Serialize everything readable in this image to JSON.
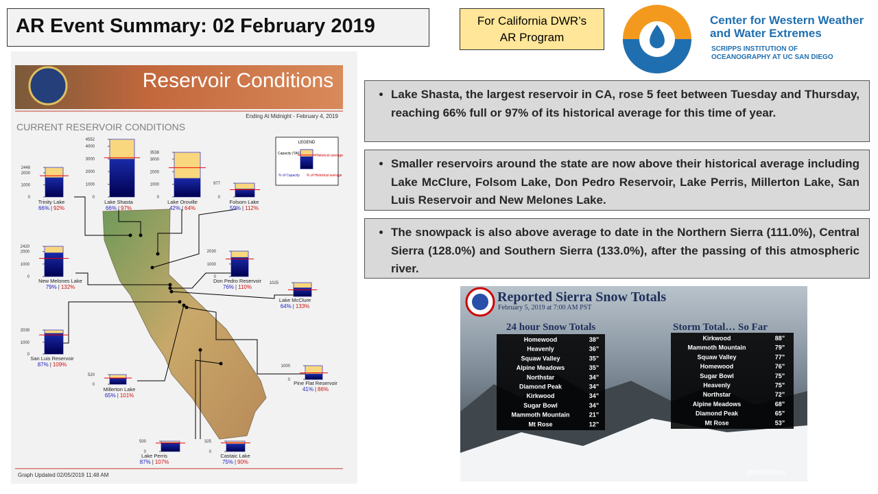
{
  "header": {
    "title": "AR Event Summary: 02 February 2019",
    "badge": "For California DWR’s AR Program",
    "logo_title": "Center for Western Weather and Water Extremes",
    "logo_subtitle": "SCRIPPS INSTITUTION OF OCEANOGRAPHY AT UC SAN DIEGO"
  },
  "bullets": [
    "Lake Shasta, the largest reservoir in CA, rose 5 feet between Tuesday and Thursday, reaching 66% full or 97% of its historical average for this time of year.",
    "Smaller reservoirs around the state are now above their historical average including Lake McClure, Folsom Lake, Don Pedro Reservoir, Lake Perris, Millerton Lake, San Luis Reservoir and New Melones Lake.",
    "The snowpack is also above average to date in the Northern Sierra (111.0%), Central Sierra (128.0%) and Southern Sierra (133.0%), after the passing of this atmospheric river."
  ],
  "reservoir_panel": {
    "banner": "Reservoir Conditions",
    "subtitle": "Ending At Midnight - February 4, 2019",
    "heading": "CURRENT RESERVOIR CONDITIONS",
    "footer": "Graph Updated 02/05/2019 11:48 AM",
    "separator": "|",
    "legend": {
      "title": "LEGEND",
      "capacity": "Capacity (TAF)",
      "historical": "Historical average",
      "pct_capacity": "% of Capacity",
      "pct_historical": "% of Historical average"
    },
    "reservoirs": [
      {
        "name": "Trinity Lake",
        "ylim": [
          0,
          2448
        ],
        "ticks": [
          0,
          1000,
          2000,
          2448
        ],
        "percent_capacity": {
          "value": 66,
          "label": "66%"
        },
        "percent_average": {
          "value": 92,
          "label": "92%"
        }
      },
      {
        "name": "Lake Shasta",
        "ylim": [
          0,
          4552
        ],
        "ticks": [
          0,
          1000,
          2000,
          3000,
          4000,
          4552
        ],
        "percent_capacity": {
          "value": 66,
          "label": "66%"
        },
        "percent_average": {
          "value": 97,
          "label": "97%"
        }
      },
      {
        "name": "Lake Oroville",
        "ylim": [
          0,
          3538
        ],
        "ticks": [
          0,
          1000,
          2000,
          3000,
          3538
        ],
        "percent_capacity": {
          "value": 42,
          "label": "42%"
        },
        "percent_average": {
          "value": 64,
          "label": "64%"
        }
      },
      {
        "name": "Folsom Lake",
        "ylim": [
          0,
          977
        ],
        "ticks": [
          0,
          977
        ],
        "percent_capacity": {
          "value": 59,
          "label": "59%"
        },
        "percent_average": {
          "value": 112,
          "label": "112%"
        }
      },
      {
        "name": "New Melones Lake",
        "ylim": [
          0,
          2420
        ],
        "ticks": [
          0,
          1000,
          2000,
          2420
        ],
        "percent_capacity": {
          "value": 79,
          "label": "79%"
        },
        "percent_average": {
          "value": 132,
          "label": "132%"
        }
      },
      {
        "name": "Don Pedro Reservoir",
        "ylim": [
          0,
          2030
        ],
        "ticks": [
          0,
          1000,
          2030
        ],
        "percent_capacity": {
          "value": 76,
          "label": "76%"
        },
        "percent_average": {
          "value": 110,
          "label": "110%"
        }
      },
      {
        "name": "Lake McClure",
        "ylim": [
          0,
          1025
        ],
        "ticks": [
          1025
        ],
        "percent_capacity": {
          "value": 64,
          "label": "64%"
        },
        "percent_average": {
          "value": 133,
          "label": "133%"
        }
      },
      {
        "name": "San Luis Reservoir",
        "ylim": [
          0,
          2039
        ],
        "ticks": [
          0,
          1000,
          2039
        ],
        "percent_capacity": {
          "value": 87,
          "label": "87%"
        },
        "percent_average": {
          "value": 109,
          "label": "109%"
        }
      },
      {
        "name": "Millerton Lake",
        "ylim": [
          0,
          520
        ],
        "ticks": [
          0,
          520
        ],
        "percent_capacity": {
          "value": 65,
          "label": "65%"
        },
        "percent_average": {
          "value": 101,
          "label": "101%"
        }
      },
      {
        "name": "Pine Flat Reservoir",
        "ylim": [
          0,
          1000
        ],
        "ticks": [
          0,
          1000
        ],
        "percent_capacity": {
          "value": 41,
          "label": "41%"
        },
        "percent_average": {
          "value": 86,
          "label": "86%"
        }
      },
      {
        "name": "Lake Perris",
        "ylim": [
          0,
          500
        ],
        "ticks": [
          0,
          500
        ],
        "percent_capacity": {
          "value": 87,
          "label": "87%"
        },
        "percent_average": {
          "value": 107,
          "label": "107%"
        }
      },
      {
        "name": "Castaic Lake",
        "ylim": [
          0,
          325
        ],
        "ticks": [
          0,
          325
        ],
        "percent_capacity": {
          "value": 75,
          "label": "75%"
        },
        "percent_average": {
          "value": 90,
          "label": "90%"
        }
      }
    ]
  },
  "snow_panel": {
    "title": "Reported Sierra Snow Totals",
    "subtitle": "February 5, 2019 at 7:00 AM PST",
    "credit": "@NWSReno",
    "tables": [
      {
        "heading": "24 hour Snow Totals",
        "rows": [
          [
            "Homewood",
            "38”"
          ],
          [
            "Heavenly",
            "36”"
          ],
          [
            "Squaw Valley",
            "35”"
          ],
          [
            "Alpine Meadows",
            "35”"
          ],
          [
            "Northstar",
            "34”"
          ],
          [
            "Diamond Peak",
            "34”"
          ],
          [
            "Kirkwood",
            "34”"
          ],
          [
            "Sugar Bowl",
            "34”"
          ],
          [
            "Mammoth Mountain",
            "21”"
          ],
          [
            "Mt Rose",
            "12”"
          ]
        ]
      },
      {
        "heading": "Storm Total… So Far",
        "rows": [
          [
            "Kirkwood",
            "88”"
          ],
          [
            "Mammoth Mountain",
            "79”"
          ],
          [
            "Squaw Valley",
            "77”"
          ],
          [
            "Homewood",
            "76”"
          ],
          [
            "Sugar Bowl",
            "75”"
          ],
          [
            "Heavenly",
            "75”"
          ],
          [
            "Northstar",
            "72”"
          ],
          [
            "Alpine Meadows",
            "68”"
          ],
          [
            "Diamond Peak",
            "65”"
          ],
          [
            "Mt Rose",
            "53”"
          ]
        ]
      }
    ]
  }
}
